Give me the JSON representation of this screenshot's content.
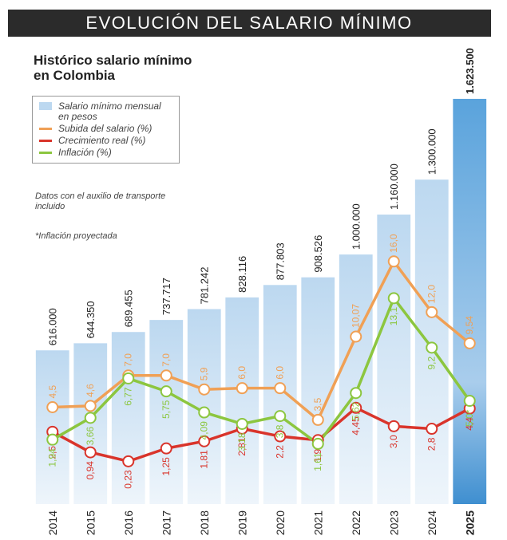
{
  "chart_data": {
    "type": "bar",
    "title": "EVOLUCIÓN DEL SALARIO MÍNIMO",
    "subtitle": "Histórico salario mínimo en Colombia",
    "notes": [
      "Datos con el auxilio de transporte incluido",
      "*Inflación proyectada"
    ],
    "categories": [
      "2014",
      "2015",
      "2016",
      "2017",
      "2018",
      "2019",
      "2020",
      "2021",
      "2022",
      "2023",
      "2024",
      "2025"
    ],
    "ylim": [
      0,
      18
    ],
    "y2lim": [
      0,
      1700000
    ],
    "series": [
      {
        "name": "Salario mínimo mensual en pesos",
        "type": "bar",
        "axis": "y2",
        "color": "#bcd8f0",
        "values": [
          616000,
          644350,
          689455,
          737717,
          781242,
          828116,
          877803,
          908526,
          1000000,
          1160000,
          1300000,
          1623500
        ],
        "value_labels": [
          "616.000",
          "644.350",
          "689.455",
          "737.717",
          "781.242",
          "828.116",
          "877.803",
          "908.526",
          "1.000.000",
          "1.160.000",
          "1.300.000",
          "1.623.500"
        ]
      },
      {
        "name": "Subida del salario (%)",
        "type": "line",
        "color": "#f0a055",
        "values": [
          4.5,
          4.6,
          7.0,
          7.0,
          5.9,
          6.0,
          6.0,
          3.5,
          10.07,
          16.0,
          12.0,
          9.54
        ],
        "value_labels": [
          "4,5",
          "4,6",
          "7,0",
          "7,0",
          "5,9",
          "6,0",
          "6,0",
          "3,5",
          "10,07",
          "16,0",
          "12,0",
          "9,54"
        ]
      },
      {
        "name": "Crecimiento real (%)",
        "type": "line",
        "color": "#d9342b",
        "values": [
          2.56,
          0.94,
          0.23,
          1.25,
          1.81,
          2.81,
          2.2,
          1.9,
          4.45,
          3.0,
          2.8,
          4.4
        ],
        "value_labels": [
          "2,56",
          "0,94",
          "0,23",
          "1,25",
          "1,81",
          "2,81",
          "2,2",
          "1,9",
          "4,45",
          "3,0",
          "2,8",
          "4,4"
        ]
      },
      {
        "name": "Inflación (%)",
        "type": "line",
        "color": "#8cc63f",
        "values": [
          1.94,
          3.66,
          6.77,
          5.75,
          4.09,
          3.18,
          3.8,
          1.61,
          5.62,
          13.1,
          9.2,
          5.0
        ],
        "value_labels": [
          "1,94",
          "3,66",
          "6,77",
          "5,75",
          "4,09",
          "3,18",
          "3,8",
          "1,61",
          "5,62",
          "13,1",
          "9,2",
          "5,0*"
        ]
      }
    ]
  }
}
